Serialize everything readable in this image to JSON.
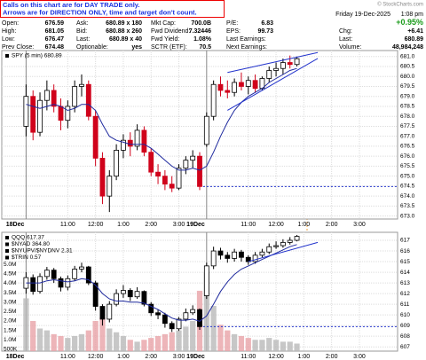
{
  "header": {
    "note": [
      "Calls on this chart are for DAY TRADE only.",
      "Arrows are for DIRECTION ONLY, time and target don't count."
    ],
    "rows": [
      [
        {
          "label": "Open:",
          "value": "676.59"
        },
        {
          "label": "Ask:",
          "value": "680.89 x 180"
        },
        {
          "label": "Mkt Cap:",
          "value": "700.0B"
        },
        {
          "label": "P/E:",
          "value": "6.83"
        }
      ],
      [
        {
          "label": "High:",
          "value": "681.05"
        },
        {
          "label": "Bid:",
          "value": "680.88 x 260"
        },
        {
          "label": "Fwd Dividend:",
          "value": "7.32446"
        },
        {
          "label": "EPS:",
          "value": "99.73"
        }
      ],
      [
        {
          "label": "Low:",
          "value": "676.47"
        },
        {
          "label": "Last:",
          "value": "680.89 x 40"
        },
        {
          "label": "Fwd Yield:",
          "value": "1.08%"
        },
        {
          "label": "Last Earnings:",
          "value": ""
        }
      ],
      [
        {
          "label": "Prev Close:",
          "value": "674.48"
        },
        {
          "label": "Optionable:",
          "value": "yes"
        },
        {
          "label": "SCTR (ETF):",
          "value": "70.5"
        },
        {
          "label": "Next Earnings:",
          "value": ""
        }
      ]
    ],
    "copyright": "© StockCharts.com",
    "date": "Friday 19-Dec-2025",
    "time": "1:08 pm",
    "change_pct": "+0.95%",
    "right": [
      {
        "label": "Chg:",
        "value": "+6.41"
      },
      {
        "label": "Last:",
        "value": "680.89"
      },
      {
        "label": "Volume:",
        "value": "48,984,248"
      }
    ]
  },
  "chart_data": [
    {
      "type": "candlestick",
      "legend": [
        "SPY (5 min) 680.89"
      ],
      "xlim": [
        -3.5,
        53.5
      ],
      "xticks": [
        {
          "value": 0,
          "label": "18Dec"
        },
        {
          "value": 6,
          "label": "11:00"
        },
        {
          "value": 10,
          "label": "12:00"
        },
        {
          "value": 14,
          "label": "1:00"
        },
        {
          "value": 18,
          "label": "2:00"
        },
        {
          "value": 22,
          "label": "3:00"
        },
        {
          "value": 26,
          "label": "19Dec"
        },
        {
          "value": 32,
          "label": "11:00"
        },
        {
          "value": 36,
          "label": "12:00"
        },
        {
          "value": 40,
          "label": "1:00"
        },
        {
          "value": 44,
          "label": "2:00"
        },
        {
          "value": 48,
          "label": "3:00"
        }
      ],
      "ylim": [
        672.85,
        681.3
      ],
      "yticks": [
        {
          "value": 673,
          "label": "673.0"
        },
        673.5,
        {
          "value": 674,
          "label": "674.0"
        },
        674.5,
        {
          "value": 675,
          "label": "675.0"
        },
        675.5,
        {
          "value": 676,
          "label": "676.0"
        },
        676.5,
        {
          "value": 677,
          "label": "677.0"
        },
        677.5,
        {
          "value": 678,
          "label": "678.0"
        },
        678.5,
        {
          "value": 679,
          "label": "679.0"
        },
        679.5,
        {
          "value": 680,
          "label": "680.0"
        },
        680.5,
        {
          "value": 681,
          "label": "681.0"
        }
      ],
      "grid": true,
      "up_color": "#000000",
      "down_color": "#d0021b",
      "ohlc": [
        [
          677.5,
          679.6,
          677,
          679
        ],
        [
          679,
          679.3,
          676.8,
          677.2
        ],
        [
          677.2,
          679.2,
          677,
          678.8
        ],
        [
          678.8,
          679.8,
          678.3,
          679.3
        ],
        [
          679.3,
          679.6,
          678.2,
          678.5
        ],
        [
          678.5,
          678.9,
          677.3,
          677.8
        ],
        [
          677.8,
          678.8,
          677.4,
          678.5
        ],
        [
          678.5,
          679.8,
          678.2,
          679.5
        ],
        [
          679.5,
          680.1,
          679,
          679.6
        ],
        [
          679.6,
          679.8,
          677.8,
          678
        ],
        [
          678,
          678.3,
          675.5,
          675.9
        ],
        [
          675.9,
          676.2,
          673.6,
          674
        ],
        [
          674,
          675.3,
          673.2,
          675
        ],
        [
          675,
          676.6,
          674.8,
          676.3
        ],
        [
          676.3,
          677.1,
          675.9,
          676.8
        ],
        [
          676.8,
          677.2,
          676,
          676.5
        ],
        [
          676.5,
          677.6,
          676.3,
          677.3
        ],
        [
          677.3,
          677.5,
          676,
          676.2
        ],
        [
          676.2,
          676.4,
          675,
          675.2
        ],
        [
          675.2,
          675.6,
          674.6,
          675
        ],
        [
          675,
          675.3,
          674.3,
          674.6
        ],
        [
          674.6,
          675,
          674.2,
          674.4
        ],
        [
          674.4,
          675.6,
          674.3,
          675.4
        ],
        [
          675.4,
          676,
          675.1,
          675.8
        ],
        [
          675.8,
          676.3,
          675.4,
          676
        ],
        [
          676,
          676.2,
          674.3,
          674.48
        ],
        [
          676.59,
          678.2,
          676.47,
          678
        ],
        [
          678,
          679.8,
          677.8,
          679.6
        ],
        [
          679.6,
          680,
          679,
          679.3
        ],
        [
          679.3,
          679.8,
          678.9,
          679.2
        ],
        [
          679.2,
          679.9,
          679,
          679.7
        ],
        [
          679.7,
          680.2,
          679.3,
          679.5
        ],
        [
          679.5,
          680,
          679.1,
          679.8
        ],
        [
          679.8,
          680.1,
          679.2,
          679.4
        ],
        [
          679.4,
          680,
          679.3,
          679.9
        ],
        [
          679.9,
          680.5,
          679.7,
          680.3
        ],
        [
          680.3,
          680.7,
          680,
          680.4
        ],
        [
          680.4,
          680.9,
          680.1,
          680.7
        ],
        [
          680.7,
          681.05,
          680.4,
          680.6
        ],
        [
          680.6,
          681,
          680.5,
          680.89
        ]
      ],
      "ma": {
        "color": "#1f2a9e",
        "values": [
          678.6,
          678.5,
          678.4,
          678.5,
          678.6,
          678.5,
          678.3,
          678.4,
          678.6,
          678.6,
          678.3,
          677.6,
          677,
          676.8,
          676.7,
          676.6,
          676.6,
          676.6,
          676.4,
          676.1,
          675.8,
          675.5,
          675.3,
          675.3,
          675.4,
          675.3,
          675.5,
          676.2,
          677,
          677.7,
          678.3,
          678.7,
          679,
          679.2,
          679.4,
          679.7,
          679.9,
          680.1,
          680.3,
          680.4
        ]
      },
      "trendlines": [
        [
          [
            29,
            680.2
          ],
          [
            42,
            681.2
          ]
        ],
        [
          [
            29,
            678.3
          ],
          [
            42,
            680.9
          ]
        ]
      ],
      "prev_close": {
        "x": 26,
        "value": 674.48,
        "color": "#2233cc"
      }
    },
    {
      "type": "candlestick",
      "legend": [
        "QQQ 617.37",
        "$NYAD 364.80",
        "$NYUPV/$NYDNV 2.31",
        "$TRIN 0.57"
      ],
      "xlim": [
        -3.5,
        53.5
      ],
      "xticks": [
        {
          "value": 0,
          "label": "18Dec"
        },
        {
          "value": 6,
          "label": "11:00"
        },
        {
          "value": 10,
          "label": "12:00"
        },
        {
          "value": 14,
          "label": "1:00"
        },
        {
          "value": 18,
          "label": "2:00"
        },
        {
          "value": 22,
          "label": "3:00"
        },
        {
          "value": 26,
          "label": "19Dec"
        },
        {
          "value": 32,
          "label": "11:00"
        },
        {
          "value": 36,
          "label": "12:00"
        },
        {
          "value": 40,
          "label": "1:00"
        },
        {
          "value": 44,
          "label": "2:00"
        },
        {
          "value": 48,
          "label": "3:00"
        }
      ],
      "ylim": [
        606.6,
        617.75
      ],
      "yticks": [
        607,
        608,
        609,
        610,
        611,
        612,
        613,
        614,
        615,
        616,
        617
      ],
      "grid": true,
      "up_color": "#000000",
      "down_color": "#000000",
      "ohlc": [
        [
          612.5,
          614,
          612,
          613.5
        ],
        [
          613.5,
          613.8,
          611.9,
          612.2
        ],
        [
          612.2,
          613.9,
          612,
          613.6
        ],
        [
          613.6,
          614.5,
          613.3,
          614.2
        ],
        [
          614.2,
          614.4,
          613,
          613.4
        ],
        [
          613.4,
          613.6,
          612.2,
          612.6
        ],
        [
          612.6,
          613.7,
          612.3,
          613.4
        ],
        [
          613.4,
          614.6,
          613.2,
          614.3
        ],
        [
          614.3,
          614.9,
          614,
          614.5
        ],
        [
          614.5,
          614.6,
          612.8,
          613
        ],
        [
          613,
          613.2,
          610.4,
          610.8
        ],
        [
          610.8,
          611,
          609,
          609.6
        ],
        [
          609.6,
          611.3,
          609.3,
          611
        ],
        [
          611,
          612.4,
          610.8,
          612
        ],
        [
          612,
          612.8,
          611.6,
          612.3
        ],
        [
          612.3,
          612.5,
          611.3,
          611.7
        ],
        [
          611.7,
          612.6,
          611.5,
          612.2
        ],
        [
          612.2,
          612.3,
          610.8,
          611
        ],
        [
          611,
          611.2,
          609.9,
          610.2
        ],
        [
          610.2,
          610.5,
          609.6,
          610
        ],
        [
          610,
          610.2,
          608.8,
          609.2
        ],
        [
          609.2,
          609.4,
          608.4,
          608.7
        ],
        [
          608.7,
          609.8,
          608.5,
          609.6
        ],
        [
          609.6,
          610.6,
          609.4,
          610.2
        ],
        [
          610.2,
          610.9,
          610,
          610.5
        ],
        [
          610.5,
          610.6,
          608.6,
          608.9
        ],
        [
          611.8,
          614.9,
          611.5,
          614.6
        ],
        [
          614.6,
          616.4,
          614.3,
          616
        ],
        [
          616,
          616.3,
          615.2,
          615.6
        ],
        [
          615.6,
          615.9,
          614.9,
          615.3
        ],
        [
          615.3,
          616.2,
          615,
          615.9
        ],
        [
          615.9,
          616.1,
          615,
          615.4
        ],
        [
          615.4,
          615.6,
          614.7,
          615
        ],
        [
          615,
          615.9,
          614.8,
          615.6
        ],
        [
          615.6,
          616.2,
          615.4,
          615.9
        ],
        [
          615.9,
          616.7,
          615.7,
          616.4
        ],
        [
          616.4,
          616.9,
          616.2,
          616.5
        ],
        [
          616.5,
          617.1,
          616.3,
          616.8
        ],
        [
          616.8,
          617.3,
          616.6,
          617
        ],
        [
          617,
          617.5,
          616.9,
          617.37
        ]
      ],
      "ma": {
        "color": "#1f2a9e",
        "values": [
          613,
          613,
          613,
          613.2,
          613.3,
          613.2,
          613.1,
          613.2,
          613.4,
          613.3,
          612.8,
          612,
          611.5,
          611.3,
          611.3,
          611.2,
          611.2,
          611.1,
          610.8,
          610.5,
          610.1,
          609.7,
          609.5,
          609.5,
          609.6,
          609.4,
          609.9,
          611,
          612.2,
          613.1,
          613.8,
          614.3,
          614.6,
          614.9,
          615.2,
          615.5,
          615.8,
          616.1,
          616.4,
          616.6
        ]
      },
      "trendlines": [
        [
          [
            32,
            615
          ],
          [
            42,
            616.8
          ]
        ]
      ],
      "prev_close": {
        "x": 26,
        "value": 608.9,
        "color": "#2233cc"
      },
      "volume": {
        "ylim": [
          400000,
          6700000
        ],
        "up_color": "#b9b9b9",
        "down_color": "#e8a3a8",
        "yticks": [
          {
            "value": 500000,
            "label": "500K"
          },
          {
            "value": 1000000,
            "label": "1.0M"
          },
          {
            "value": 1500000,
            "label": "1.5M"
          },
          {
            "value": 2000000,
            "label": "2.0M"
          },
          {
            "value": 2500000,
            "label": "2.5M"
          },
          {
            "value": 3000000,
            "label": "3.0M"
          },
          {
            "value": 3500000,
            "label": "3.5M"
          },
          {
            "value": 4000000,
            "label": "4.0M"
          },
          {
            "value": 4500000,
            "label": "4.5M"
          },
          {
            "value": 5000000,
            "label": "5.0M"
          }
        ],
        "values": [
          3200000,
          2000000,
          1600000,
          1500000,
          1300000,
          1200000,
          1100000,
          1200000,
          1300000,
          1500000,
          2000000,
          2200000,
          1600000,
          1400000,
          1200000,
          1000000,
          900000,
          1000000,
          1100000,
          1200000,
          1300000,
          1400000,
          1500000,
          1700000,
          2000000,
          3600000,
          4600000,
          2800000,
          1800000,
          1500000,
          1300000,
          1200000,
          1100000,
          1000000,
          1000000,
          1100000,
          1000000,
          900000,
          900000,
          800000
        ]
      }
    }
  ]
}
